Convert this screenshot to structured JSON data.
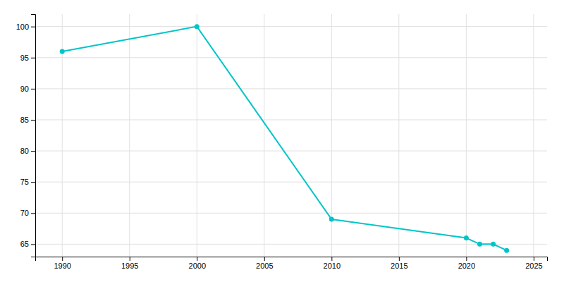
{
  "chart_data": {
    "type": "line",
    "x": [
      1990,
      2000,
      2010,
      2020,
      2021,
      2022,
      2023
    ],
    "values": [
      96,
      100,
      69,
      66,
      65,
      65,
      64
    ],
    "color": "#00C5C8",
    "marker": "circle",
    "xlim": [
      1988,
      2026
    ],
    "ylim": [
      63,
      102
    ],
    "xticks": [
      1990,
      1995,
      2000,
      2005,
      2010,
      2015,
      2020,
      2025
    ],
    "yticks": [
      65,
      70,
      75,
      80,
      85,
      90,
      95,
      100
    ],
    "grid": true
  }
}
